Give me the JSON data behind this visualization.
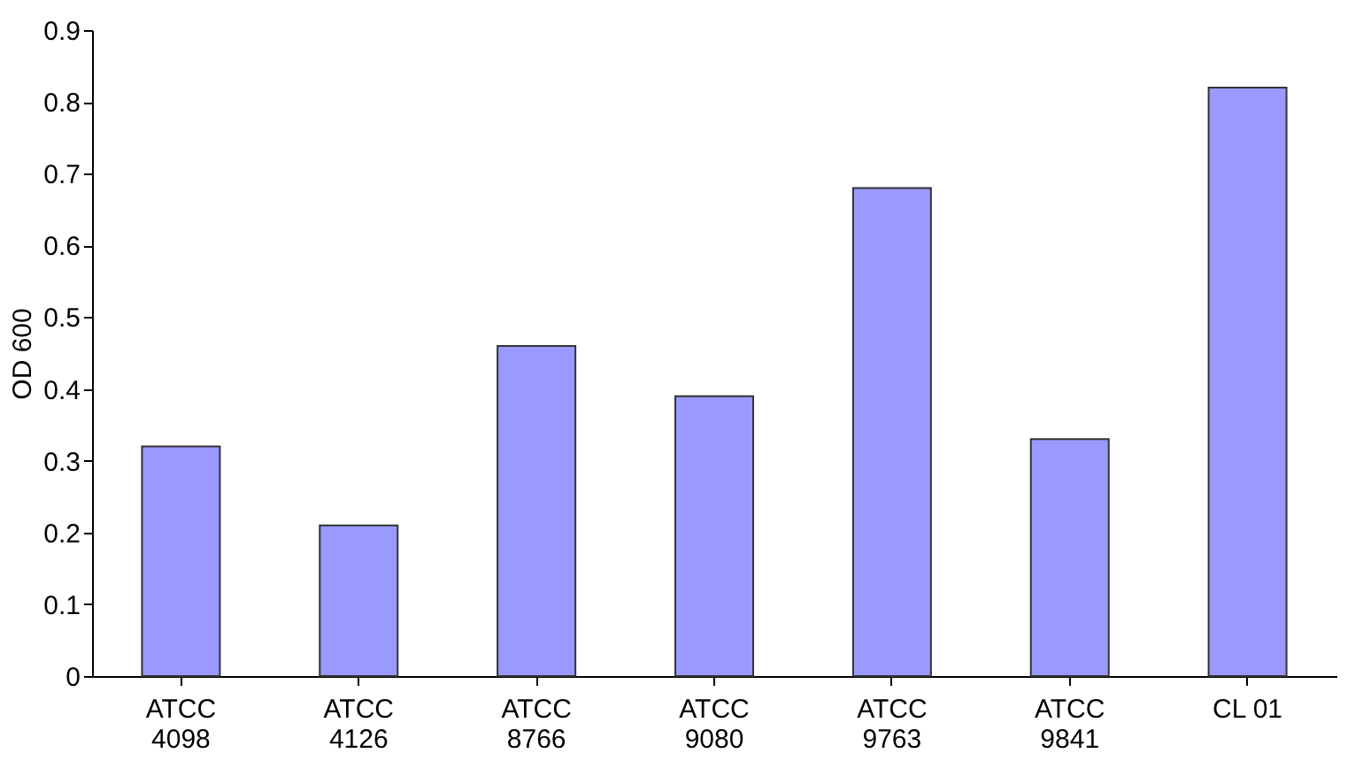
{
  "chart_data": {
    "type": "bar",
    "ylabel": "OD 600",
    "categories": [
      "ATCC\n4098",
      "ATCC\n4126",
      "ATCC\n8766",
      "ATCC\n9080",
      "ATCC\n9763",
      "ATCC\n9841",
      "CL 01"
    ],
    "values": [
      0.32,
      0.21,
      0.46,
      0.39,
      0.68,
      0.33,
      0.82
    ],
    "color": "#9999ff",
    "ylim": [
      0,
      0.9
    ],
    "yticks": [
      0,
      0.1,
      0.2,
      0.3,
      0.4,
      0.5,
      0.6,
      0.7,
      0.8,
      0.9
    ],
    "grid": false
  }
}
